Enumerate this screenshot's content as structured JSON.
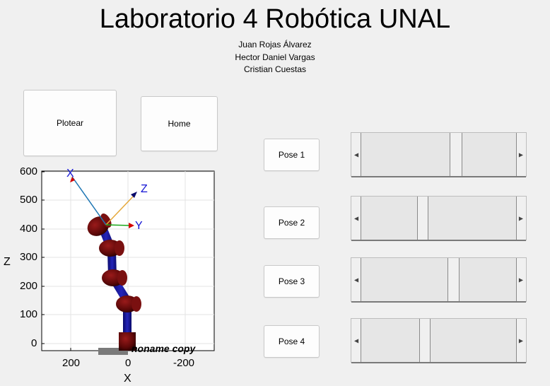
{
  "header": {
    "title": "Laboratorio 4 Robótica UNAL",
    "authors": [
      "Juan Rojas Álvarez",
      "Hector Daniel Vargas",
      "Cristian Cuestas"
    ]
  },
  "buttons": {
    "plot": "Plotear",
    "home": "Home",
    "pose1": "Pose 1",
    "pose2": "Pose 2",
    "pose3": "Pose 3",
    "pose4": "Pose 4"
  },
  "plot": {
    "x_label": "X",
    "z_label": "Z",
    "x_ticks": [
      "200",
      "0",
      "-200"
    ],
    "z_ticks": [
      "600",
      "500",
      "400",
      "300",
      "200",
      "100",
      "0"
    ],
    "frame_labels": {
      "x": "X",
      "y": "Y",
      "z": "Z"
    },
    "robot_name": "noname copy"
  },
  "sliders": [
    {
      "name": "slider-1",
      "thumb_fraction": 0.6
    },
    {
      "name": "slider-2",
      "thumb_fraction": 0.38
    },
    {
      "name": "slider-3",
      "thumb_fraction": 0.59
    },
    {
      "name": "slider-4",
      "thumb_fraction": 0.39
    }
  ],
  "colors": {
    "link": "#14148c",
    "joint": "#6b0b0b",
    "axis_x": "#1f77b4",
    "axis_z": "#e5a83a",
    "axis_y": "#1aa81a",
    "arrow": "#d40000"
  }
}
